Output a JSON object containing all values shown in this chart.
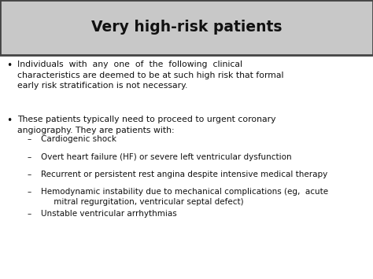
{
  "title": "Very high-risk patients",
  "title_fontsize": 13.5,
  "title_bg_color": "#c8c8c8",
  "title_border_color": "#444444",
  "bg_color": "#ffffff",
  "outer_bg_color": "#b0b0b0",
  "text_color": "#111111",
  "bullet1_line1": "Individuals  with  any  one  of  the  following  clinical",
  "bullet1_line2": "characteristics are deemed to be at such high risk that formal",
  "bullet1_line3": "early risk stratification is not necessary.",
  "bullet2_line1": "These patients typically need to proceed to urgent coronary",
  "bullet2_line2": "angiography. They are patients with:",
  "sub_bullets": [
    "Cardiogenic shock",
    "Overt heart failure (HF) or severe left ventricular dysfunction",
    "Recurrent or persistent rest angina despite intensive medical therapy",
    "Hemodynamic instability due to mechanical complications (eg,  acute\n     mitral regurgitation, ventricular septal defect)",
    "Unstable ventricular arrhythmias"
  ],
  "body_fontsize": 7.8,
  "sub_fontsize": 7.5
}
